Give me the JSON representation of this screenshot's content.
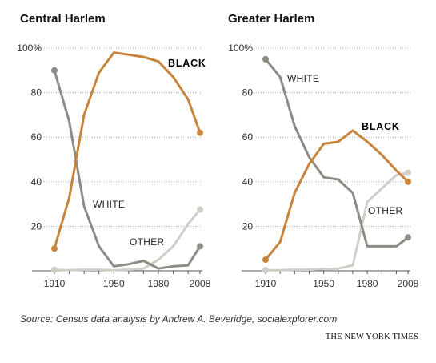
{
  "chart_data": [
    {
      "type": "line",
      "title": "Central Harlem",
      "ylim": [
        0,
        100
      ],
      "xlim": [
        1910,
        2008
      ],
      "yticks": [
        "100%",
        "80",
        "60",
        "40",
        "20"
      ],
      "xticks": [
        "1910",
        "1950",
        "1980",
        "2008"
      ],
      "grid": true,
      "series": [
        {
          "name": "BLACK",
          "color": "#c8843a",
          "x": [
            1910,
            1920,
            1930,
            1940,
            1950,
            1960,
            1970,
            1980,
            1990,
            2000,
            2008
          ],
          "y": [
            10,
            33,
            70,
            89,
            98,
            97,
            96,
            94,
            87,
            77,
            62
          ]
        },
        {
          "name": "WHITE",
          "color": "#8c8c84",
          "x": [
            1910,
            1920,
            1930,
            1940,
            1950,
            1960,
            1970,
            1980,
            1990,
            2000,
            2008
          ],
          "y": [
            90,
            67,
            29,
            11,
            2,
            3,
            4.5,
            1,
            2,
            2.5,
            11
          ]
        },
        {
          "name": "OTHER",
          "color": "#cfcfc8",
          "x": [
            1910,
            1920,
            1930,
            1940,
            1950,
            1960,
            1970,
            1980,
            1990,
            2000,
            2008
          ],
          "y": [
            0.5,
            0.3,
            0.5,
            0.5,
            0.3,
            0.5,
            1,
            5,
            11,
            21,
            27.5
          ]
        }
      ]
    },
    {
      "type": "line",
      "title": "Greater Harlem",
      "ylim": [
        0,
        100
      ],
      "xlim": [
        1910,
        2008
      ],
      "yticks": [
        "100%",
        "80",
        "60",
        "40",
        "20"
      ],
      "xticks": [
        "1910",
        "1950",
        "1980",
        "2008"
      ],
      "grid": true,
      "series": [
        {
          "name": "BLACK",
          "color": "#c8843a",
          "x": [
            1910,
            1920,
            1930,
            1940,
            1950,
            1960,
            1970,
            1980,
            1990,
            2000,
            2008
          ],
          "y": [
            5,
            13,
            35,
            48,
            57,
            58,
            63,
            58,
            52,
            45,
            40
          ]
        },
        {
          "name": "WHITE",
          "color": "#8c8c84",
          "x": [
            1910,
            1920,
            1930,
            1940,
            1950,
            1960,
            1970,
            1980,
            1990,
            2000,
            2008
          ],
          "y": [
            95,
            87,
            65,
            51,
            42,
            41,
            35,
            11,
            11,
            11,
            15
          ]
        },
        {
          "name": "OTHER",
          "color": "#cfcfc8",
          "x": [
            1910,
            1920,
            1930,
            1940,
            1950,
            1960,
            1970,
            1980,
            1990,
            2000,
            2008
          ],
          "y": [
            0.3,
            0.3,
            0.5,
            0.5,
            0.8,
            1,
            2.5,
            31,
            37,
            43,
            44
          ]
        }
      ]
    }
  ],
  "footer": {
    "source": "Source: Census data analysis by Andrew A. Beveridge, socialexplorer.com",
    "credit": "THE NEW YORK TIMES"
  }
}
